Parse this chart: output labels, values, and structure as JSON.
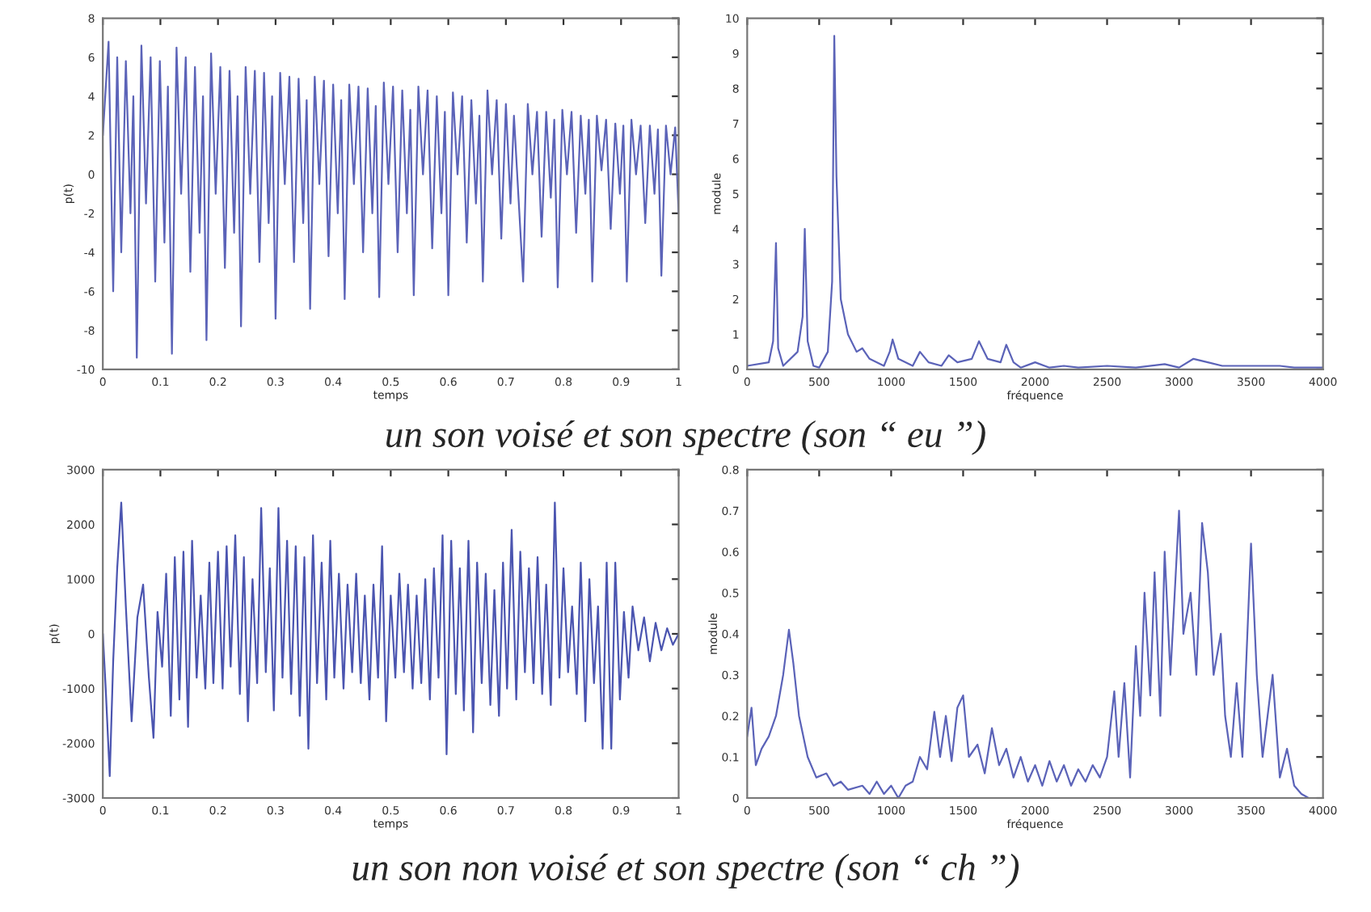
{
  "chart_data": [
    {
      "type": "line",
      "xlabel": "temps",
      "ylabel": "p(t)",
      "xlim": [
        0,
        1
      ],
      "xticks": [
        0,
        0.1,
        0.2,
        0.3,
        0.4,
        0.5,
        0.6,
        0.7,
        0.8,
        0.9,
        1
      ],
      "ylim": [
        -10,
        8
      ],
      "yticks": [
        -10,
        -8,
        -6,
        -4,
        -2,
        0,
        2,
        4,
        6,
        8
      ],
      "grid": false,
      "annotations": [
        "un son voisé et son spectre (son “ eu ”)"
      ],
      "series": [
        {
          "color": "#5b63b8",
          "x": [
            0,
            0.01,
            0.018,
            0.025,
            0.032,
            0.04,
            0.048,
            0.053,
            0.059,
            0.067,
            0.075,
            0.083,
            0.091,
            0.099,
            0.107,
            0.113,
            0.12,
            0.128,
            0.136,
            0.144,
            0.152,
            0.16,
            0.168,
            0.174,
            0.18,
            0.188,
            0.196,
            0.204,
            0.212,
            0.22,
            0.228,
            0.234,
            0.24,
            0.248,
            0.256,
            0.264,
            0.272,
            0.28,
            0.288,
            0.294,
            0.3,
            0.308,
            0.316,
            0.324,
            0.332,
            0.34,
            0.348,
            0.354,
            0.36,
            0.368,
            0.376,
            0.384,
            0.392,
            0.4,
            0.408,
            0.414,
            0.42,
            0.428,
            0.436,
            0.444,
            0.452,
            0.46,
            0.468,
            0.474,
            0.48,
            0.488,
            0.496,
            0.504,
            0.512,
            0.52,
            0.528,
            0.534,
            0.54,
            0.548,
            0.556,
            0.564,
            0.572,
            0.58,
            0.588,
            0.594,
            0.6,
            0.608,
            0.616,
            0.624,
            0.632,
            0.64,
            0.648,
            0.654,
            0.66,
            0.668,
            0.676,
            0.684,
            0.692,
            0.7,
            0.708,
            0.714,
            0.73,
            0.738,
            0.746,
            0.754,
            0.762,
            0.77,
            0.778,
            0.784,
            0.79,
            0.798,
            0.806,
            0.814,
            0.822,
            0.83,
            0.838,
            0.844,
            0.85,
            0.858,
            0.866,
            0.874,
            0.882,
            0.89,
            0.898,
            0.904,
            0.91,
            0.918,
            0.926,
            0.934,
            0.942,
            0.95,
            0.958,
            0.964,
            0.97,
            0.978,
            0.986,
            0.994,
            1.0
          ],
          "values": [
            2,
            6.8,
            -6,
            6,
            -4,
            5.8,
            -2,
            4,
            -9.4,
            6.6,
            -1.5,
            6,
            -5.5,
            5.8,
            -3.5,
            4.5,
            -9.2,
            6.5,
            -1,
            6,
            -5,
            5.5,
            -3,
            4,
            -8.5,
            6.2,
            -1,
            5.5,
            -4.8,
            5.3,
            -3,
            4,
            -7.8,
            5.5,
            -1,
            5.3,
            -4.5,
            5.2,
            -2.5,
            4,
            -7.4,
            5.2,
            -0.5,
            5,
            -4.5,
            4.9,
            -2.5,
            3.8,
            -6.9,
            5,
            -0.5,
            4.8,
            -4.2,
            4.6,
            -2,
            3.8,
            -6.4,
            4.6,
            -0.5,
            4.5,
            -4,
            4.4,
            -2,
            3.5,
            -6.3,
            4.7,
            -0.5,
            4.5,
            -4,
            4.3,
            -2,
            3.3,
            -6.2,
            4.5,
            0,
            4.3,
            -3.8,
            4,
            -2,
            3.2,
            -6.2,
            4.2,
            0,
            4,
            -3.5,
            3.8,
            -1.5,
            3,
            -5.5,
            4.3,
            0,
            3.8,
            -3.3,
            3.6,
            -1.5,
            3,
            -5.5,
            3.6,
            0,
            3.2,
            -3.2,
            3.2,
            -1.2,
            2.8,
            -5.8,
            3.3,
            0,
            3.2,
            -3,
            3,
            -1,
            2.8,
            -5.5,
            3,
            0.2,
            2.8,
            -2.8,
            2.6,
            -1,
            2.5,
            -5.5,
            2.8,
            0,
            2.5,
            -2.5,
            2.5,
            -1,
            2.3,
            -5.2,
            2.5,
            0,
            2.4,
            -2
          ]
        }
      ]
    },
    {
      "type": "line",
      "xlabel": "fréquence",
      "ylabel": "module",
      "xlim": [
        0,
        4000
      ],
      "xticks": [
        0,
        500,
        1000,
        1500,
        2000,
        2500,
        3000,
        3500,
        4000
      ],
      "ylim": [
        0,
        10
      ],
      "yticks": [
        0,
        1,
        2,
        3,
        4,
        5,
        6,
        7,
        8,
        9,
        10
      ],
      "grid": false,
      "series": [
        {
          "color": "#5b63b8",
          "x": [
            0,
            150,
            180,
            200,
            215,
            250,
            350,
            385,
            400,
            420,
            460,
            500,
            560,
            590,
            605,
            620,
            650,
            700,
            760,
            800,
            850,
            950,
            990,
            1010,
            1050,
            1150,
            1200,
            1260,
            1350,
            1400,
            1460,
            1560,
            1610,
            1670,
            1760,
            1800,
            1850,
            1900,
            2000,
            2100,
            2200,
            2300,
            2500,
            2700,
            2900,
            3000,
            3100,
            3200,
            3300,
            3500,
            3700,
            3800,
            4000
          ],
          "values": [
            0.1,
            0.2,
            0.8,
            3.6,
            0.6,
            0.1,
            0.5,
            1.5,
            4.0,
            0.8,
            0.1,
            0.05,
            0.5,
            2.5,
            9.5,
            5.5,
            2.0,
            1.0,
            0.5,
            0.6,
            0.3,
            0.1,
            0.5,
            0.85,
            0.3,
            0.1,
            0.5,
            0.2,
            0.1,
            0.4,
            0.2,
            0.3,
            0.8,
            0.3,
            0.2,
            0.7,
            0.2,
            0.05,
            0.2,
            0.05,
            0.1,
            0.05,
            0.1,
            0.05,
            0.15,
            0.05,
            0.3,
            0.2,
            0.1,
            0.1,
            0.1,
            0.05,
            0.05
          ]
        }
      ]
    },
    {
      "type": "line",
      "xlabel": "temps",
      "ylabel": "p(t)",
      "xlim": [
        0,
        1
      ],
      "xticks": [
        0,
        0.1,
        0.2,
        0.3,
        0.4,
        0.5,
        0.6,
        0.7,
        0.8,
        0.9,
        1
      ],
      "ylim": [
        -3000,
        3000
      ],
      "yticks": [
        -3000,
        -2000,
        -1000,
        0,
        1000,
        2000,
        3000
      ],
      "grid": false,
      "annotations": [
        "un son non voisé et son spectre (son “ ch ”)"
      ],
      "series": [
        {
          "color": "#4b55b0",
          "x": [
            0,
            0.005,
            0.012,
            0.018,
            0.025,
            0.032,
            0.04,
            0.05,
            0.06,
            0.07,
            0.08,
            0.088,
            0.095,
            0.103,
            0.11,
            0.118,
            0.125,
            0.133,
            0.14,
            0.148,
            0.155,
            0.163,
            0.17,
            0.178,
            0.185,
            0.192,
            0.2,
            0.208,
            0.215,
            0.222,
            0.23,
            0.238,
            0.245,
            0.252,
            0.26,
            0.268,
            0.275,
            0.283,
            0.29,
            0.297,
            0.305,
            0.312,
            0.32,
            0.327,
            0.335,
            0.342,
            0.35,
            0.357,
            0.365,
            0.372,
            0.38,
            0.388,
            0.395,
            0.402,
            0.41,
            0.418,
            0.425,
            0.433,
            0.44,
            0.448,
            0.455,
            0.463,
            0.47,
            0.478,
            0.485,
            0.492,
            0.5,
            0.508,
            0.515,
            0.523,
            0.53,
            0.538,
            0.545,
            0.553,
            0.56,
            0.568,
            0.575,
            0.583,
            0.59,
            0.597,
            0.605,
            0.613,
            0.62,
            0.627,
            0.635,
            0.643,
            0.65,
            0.658,
            0.665,
            0.673,
            0.68,
            0.688,
            0.695,
            0.702,
            0.71,
            0.718,
            0.725,
            0.733,
            0.74,
            0.748,
            0.755,
            0.763,
            0.77,
            0.778,
            0.785,
            0.793,
            0.8,
            0.808,
            0.815,
            0.823,
            0.83,
            0.838,
            0.845,
            0.853,
            0.86,
            0.868,
            0.875,
            0.883,
            0.89,
            0.898,
            0.905,
            0.913,
            0.92,
            0.93,
            0.94,
            0.95,
            0.96,
            0.97,
            0.98,
            0.99,
            1.0
          ],
          "values": [
            0,
            -1000,
            -2600,
            -500,
            1200,
            2400,
            500,
            -1600,
            300,
            900,
            -800,
            -1900,
            400,
            -600,
            1100,
            -1500,
            1400,
            -1200,
            1500,
            -1700,
            1700,
            -800,
            700,
            -1000,
            1300,
            -900,
            1500,
            -1000,
            1600,
            -600,
            1800,
            -1100,
            1400,
            -1600,
            1000,
            -900,
            2300,
            -700,
            1200,
            -1400,
            2300,
            -800,
            1700,
            -1100,
            1600,
            -1500,
            1400,
            -2100,
            1800,
            -900,
            1300,
            -1200,
            1700,
            -800,
            1100,
            -1000,
            900,
            -700,
            1100,
            -900,
            700,
            -1200,
            900,
            -800,
            1600,
            -1600,
            700,
            -800,
            1100,
            -700,
            900,
            -1000,
            700,
            -900,
            1000,
            -1200,
            1200,
            -800,
            1800,
            -2200,
            1700,
            -1100,
            1200,
            -1400,
            1700,
            -1800,
            1300,
            -900,
            1100,
            -1300,
            800,
            -1500,
            1300,
            -1000,
            1900,
            -1200,
            1500,
            -700,
            1200,
            -900,
            1400,
            -1100,
            900,
            -1300,
            2400,
            -800,
            1200,
            -700,
            500,
            -1100,
            1300,
            -1600,
            1000,
            -900,
            500,
            -2100,
            1300,
            -2100,
            1300,
            -1200,
            400,
            -800,
            500,
            -300,
            300,
            -500,
            200,
            -300,
            100,
            -200,
            0
          ]
        }
      ]
    },
    {
      "type": "line",
      "xlabel": "fréquence",
      "ylabel": "module",
      "xlim": [
        0,
        4000
      ],
      "xticks": [
        0,
        500,
        1000,
        1500,
        2000,
        2500,
        3000,
        3500,
        4000
      ],
      "ylim": [
        0,
        0.8
      ],
      "yticks": [
        0,
        0.1,
        0.2,
        0.3,
        0.4,
        0.5,
        0.6,
        0.7,
        0.8
      ],
      "grid": false,
      "series": [
        {
          "color": "#5b63b8",
          "x": [
            0,
            30,
            60,
            100,
            150,
            200,
            250,
            290,
            320,
            360,
            420,
            480,
            550,
            600,
            650,
            700,
            800,
            850,
            900,
            950,
            1000,
            1050,
            1100,
            1150,
            1200,
            1250,
            1300,
            1340,
            1380,
            1420,
            1460,
            1500,
            1540,
            1600,
            1650,
            1700,
            1750,
            1800,
            1850,
            1900,
            1950,
            2000,
            2050,
            2100,
            2150,
            2200,
            2250,
            2300,
            2350,
            2400,
            2450,
            2500,
            2550,
            2580,
            2620,
            2660,
            2700,
            2730,
            2760,
            2800,
            2830,
            2870,
            2900,
            2940,
            3000,
            3030,
            3080,
            3120,
            3160,
            3200,
            3240,
            3290,
            3320,
            3360,
            3400,
            3440,
            3500,
            3540,
            3580,
            3650,
            3700,
            3750,
            3800,
            3850,
            3900
          ],
          "values": [
            0.15,
            0.22,
            0.08,
            0.12,
            0.15,
            0.2,
            0.3,
            0.41,
            0.33,
            0.2,
            0.1,
            0.05,
            0.06,
            0.03,
            0.04,
            0.02,
            0.03,
            0.01,
            0.04,
            0.01,
            0.03,
            0.0,
            0.03,
            0.04,
            0.1,
            0.07,
            0.21,
            0.1,
            0.2,
            0.09,
            0.22,
            0.25,
            0.1,
            0.13,
            0.06,
            0.17,
            0.08,
            0.12,
            0.05,
            0.1,
            0.04,
            0.08,
            0.03,
            0.09,
            0.04,
            0.08,
            0.03,
            0.07,
            0.04,
            0.08,
            0.05,
            0.1,
            0.26,
            0.1,
            0.28,
            0.05,
            0.37,
            0.2,
            0.5,
            0.25,
            0.55,
            0.2,
            0.6,
            0.3,
            0.7,
            0.4,
            0.5,
            0.3,
            0.67,
            0.55,
            0.3,
            0.4,
            0.2,
            0.1,
            0.28,
            0.1,
            0.62,
            0.3,
            0.1,
            0.3,
            0.05,
            0.12,
            0.03,
            0.01,
            0.0
          ]
        }
      ]
    }
  ]
}
